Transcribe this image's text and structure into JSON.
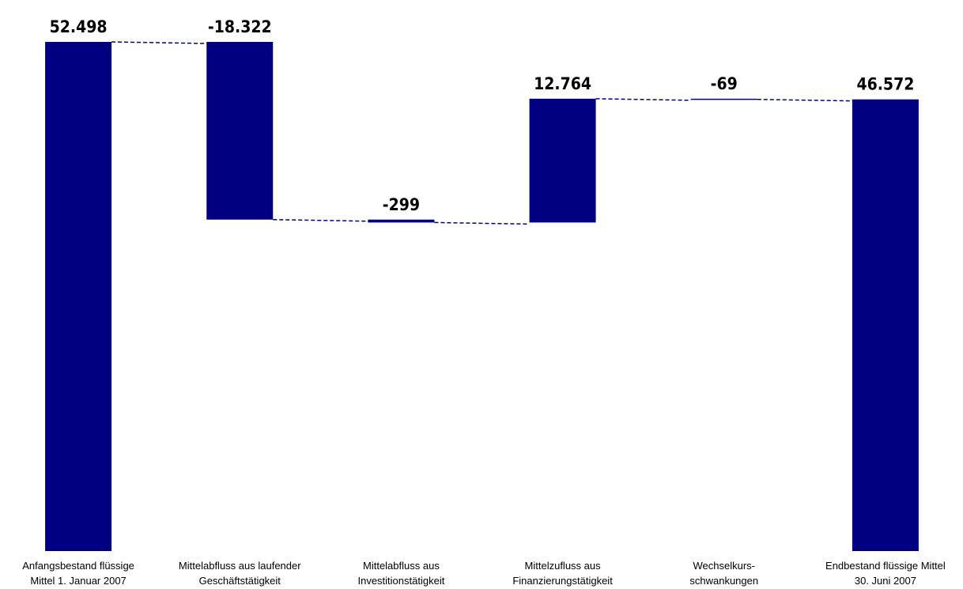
{
  "chart_data": {
    "type": "waterfall",
    "categories": [
      "Anfangsbestand flüssige\nMittel 1. Januar 2007",
      "Mittelabfluss aus laufender\nGeschäftstätigkeit",
      "Mittelabfluss aus\nInvestitionstätigkeit",
      "Mittelzufluss aus\nFinanzierungstätigkeit",
      "Wechselkurs-\nschwankungen",
      "Endbestand flüssige Mittel\n30. Juni 2007"
    ],
    "values": [
      52498,
      -18322,
      -299,
      12764,
      -69,
      46572
    ],
    "value_labels": [
      "52.498",
      "-18.322",
      "-299",
      "12.764",
      "-69",
      "46.572"
    ],
    "is_total": [
      false,
      false,
      false,
      false,
      false,
      true
    ],
    "color": "#000080"
  }
}
